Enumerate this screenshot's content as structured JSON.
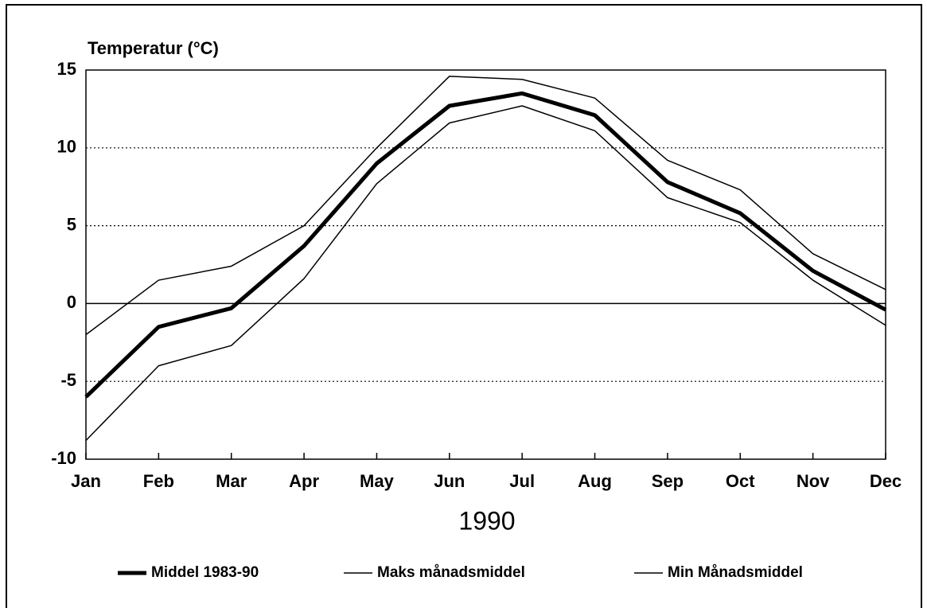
{
  "chart_data": {
    "type": "line",
    "y_label": "Temperatur (°C)",
    "x_label": "1990",
    "categories": [
      "Jan",
      "Feb",
      "Mar",
      "Apr",
      "May",
      "Jun",
      "Jul",
      "Aug",
      "Sep",
      "Oct",
      "Nov",
      "Dec"
    ],
    "series": [
      {
        "name": "Middel 1983-90",
        "color": "#000000",
        "line_width": 5,
        "values": [
          -6.0,
          -1.5,
          -0.3,
          3.7,
          9.0,
          12.7,
          13.5,
          12.1,
          7.8,
          5.8,
          2.1,
          -0.4
        ]
      },
      {
        "name": "Maks månadsmiddel",
        "color": "#000000",
        "line_width": 1.5,
        "values": [
          -2.0,
          1.5,
          2.4,
          5.0,
          10.0,
          14.6,
          14.4,
          13.2,
          9.2,
          7.3,
          3.2,
          0.9
        ]
      },
      {
        "name": "Min Månadsmiddel",
        "color": "#000000",
        "line_width": 1.5,
        "values": [
          -8.8,
          -4.0,
          -2.7,
          1.6,
          7.7,
          11.6,
          12.7,
          11.1,
          6.8,
          5.2,
          1.5,
          -1.4
        ]
      }
    ],
    "ylim": [
      -10,
      15
    ],
    "yticks": [
      -10,
      -5,
      0,
      5,
      10,
      15
    ],
    "grid": true
  }
}
